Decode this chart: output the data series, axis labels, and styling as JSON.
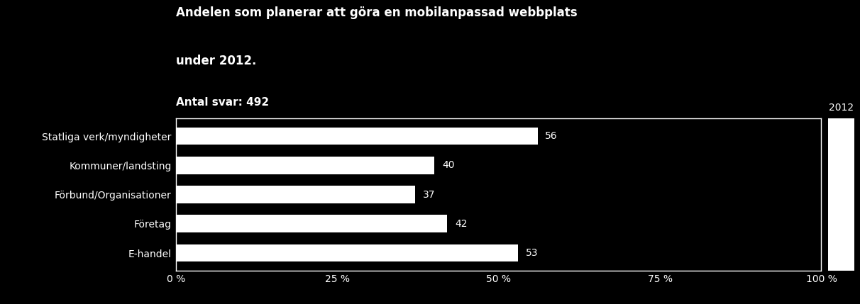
{
  "title_line1": "Andelen som planerar att göra en mobilanpassad webbplats",
  "title_line2": "under 2012.",
  "subtitle": "Antal svar: 492",
  "categories": [
    "Statliga verk/myndigheter",
    "Kommuner/landsting",
    "Förbund/Organisationer",
    "Företag",
    "E-handel"
  ],
  "values": [
    56,
    40,
    37,
    42,
    53
  ],
  "bar_color": "#ffffff",
  "background_color": "#000000",
  "text_color": "#ffffff",
  "xlabel_ticks": [
    0,
    25,
    50,
    75,
    100
  ],
  "xlabel_labels": [
    "0 %",
    "25 %",
    "50 %",
    "75 %",
    "100 %"
  ],
  "xlim": [
    0,
    100
  ],
  "legend_label": "2012",
  "legend_color": "#ffffff",
  "value_label_fontsize": 10,
  "category_fontsize": 10,
  "title_fontsize": 12,
  "subtitle_fontsize": 11,
  "tick_fontsize": 10
}
